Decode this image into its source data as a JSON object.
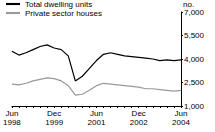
{
  "chart_data": {
    "type": "line",
    "y_label": "no.",
    "categories": [
      "Jun 1998",
      null,
      null,
      null,
      null,
      null,
      "Dec 1999",
      null,
      null,
      null,
      null,
      null,
      "Jun 2001",
      null,
      null,
      null,
      null,
      null,
      "Dec 2002",
      null,
      null,
      null,
      null,
      null,
      "Jun 2004"
    ],
    "series": [
      {
        "name": "Total dwelling units",
        "color": "#000000",
        "values": [
          4500,
          4250,
          4400,
          4600,
          4800,
          4900,
          4700,
          4600,
          4200,
          2600,
          2900,
          3400,
          3900,
          4300,
          4400,
          4300,
          4200,
          4150,
          4100,
          4050,
          4000,
          3900,
          3950,
          3900,
          3950
        ]
      },
      {
        "name": "Private sector houses",
        "color": "#999999",
        "values": [
          2400,
          2350,
          2450,
          2600,
          2700,
          2800,
          2750,
          2600,
          2300,
          1700,
          1750,
          2000,
          2300,
          2450,
          2400,
          2350,
          2300,
          2250,
          2200,
          2100,
          2100,
          2050,
          2000,
          1950,
          2000
        ]
      }
    ],
    "ylim": [
      1000,
      7000
    ],
    "yticks": [
      1000,
      2500,
      4000,
      5500,
      7000
    ],
    "grid": false,
    "legend": "top-left"
  }
}
